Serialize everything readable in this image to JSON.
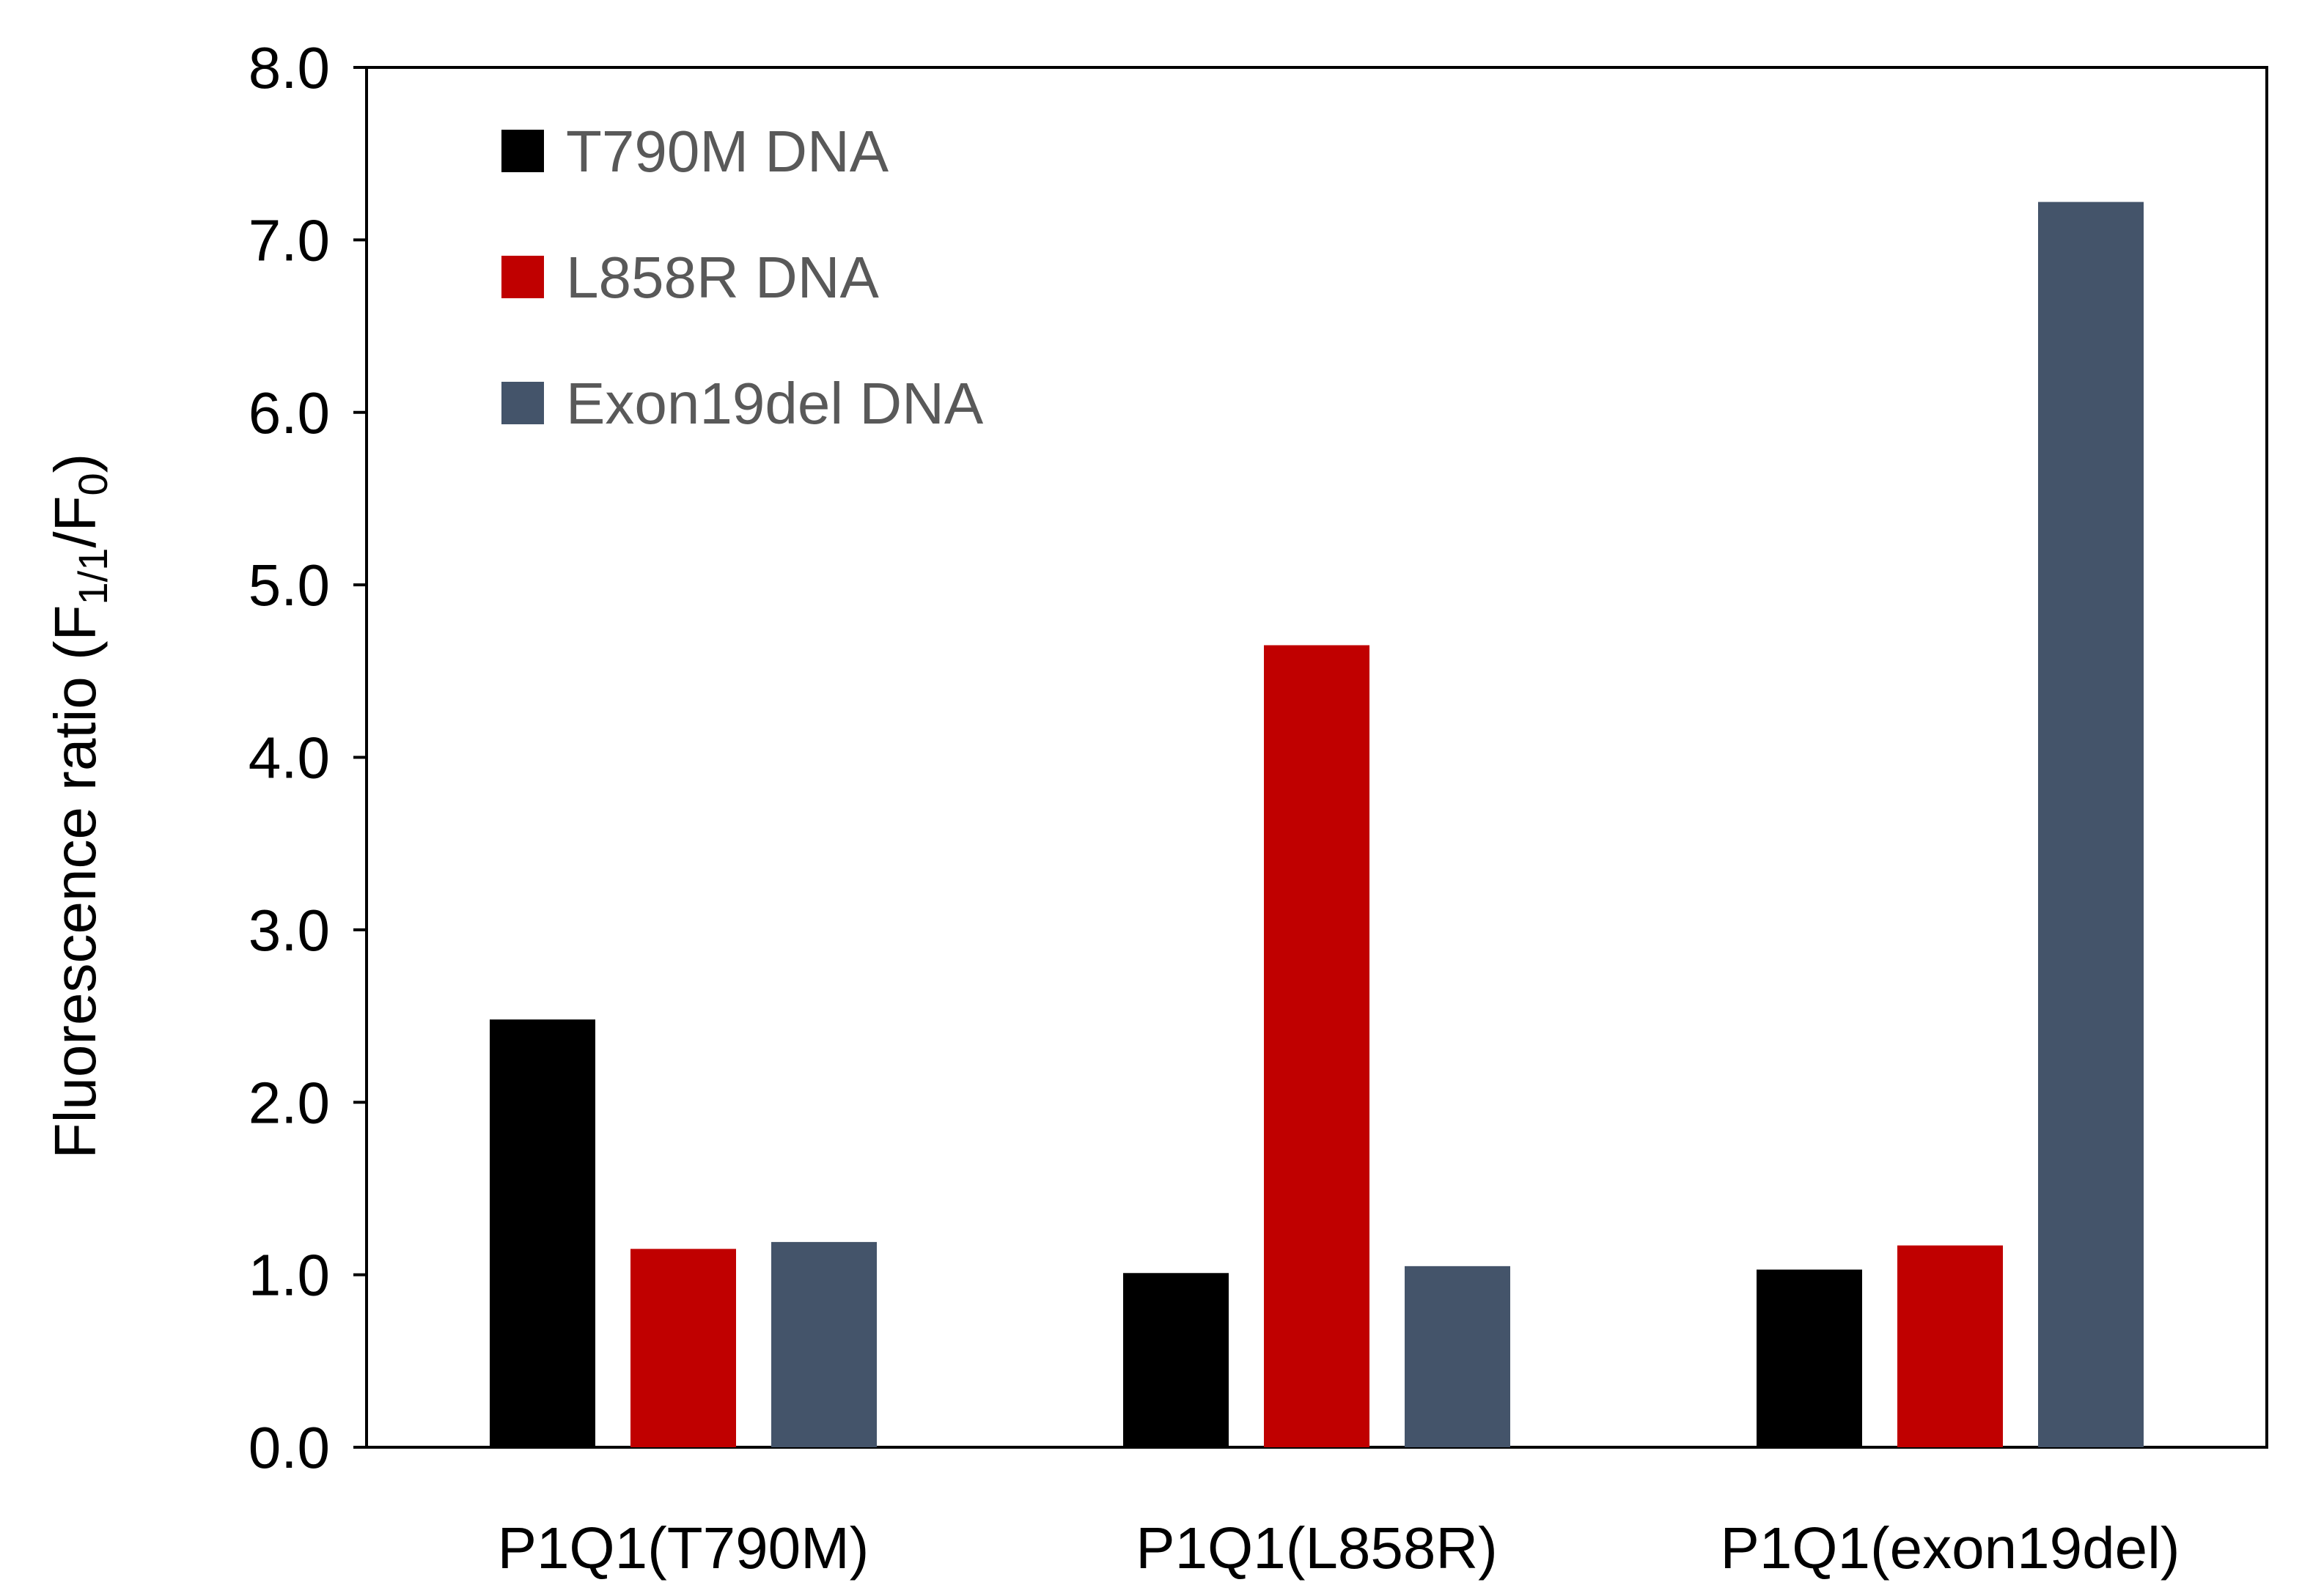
{
  "chart_data": {
    "type": "bar",
    "title": "",
    "xlabel": "",
    "ylabel": "Fluorescence ratio (F",
    "ylabel_sub1": "1/1",
    "ylabel_mid": "/F",
    "ylabel_sub2": "0",
    "ylabel_end": ")",
    "ylim": [
      0,
      8
    ],
    "yticks": [
      "0.0",
      "1.0",
      "2.0",
      "3.0",
      "4.0",
      "5.0",
      "6.0",
      "7.0",
      "8.0"
    ],
    "grid": false,
    "legend_position": "top-left",
    "categories": [
      "P1Q1(T790M)",
      "P1Q1(L858R)",
      "P1Q1(exon19del)"
    ],
    "series": [
      {
        "name": "T790M DNA",
        "color": "#000000",
        "values": [
          2.48,
          1.01,
          1.03
        ]
      },
      {
        "name": "L858R DNA",
        "color": "#c00000",
        "values": [
          1.15,
          4.65,
          1.17
        ]
      },
      {
        "name": "Exon19del DNA",
        "color": "#44546a",
        "values": [
          1.19,
          1.05,
          7.22
        ]
      }
    ]
  }
}
